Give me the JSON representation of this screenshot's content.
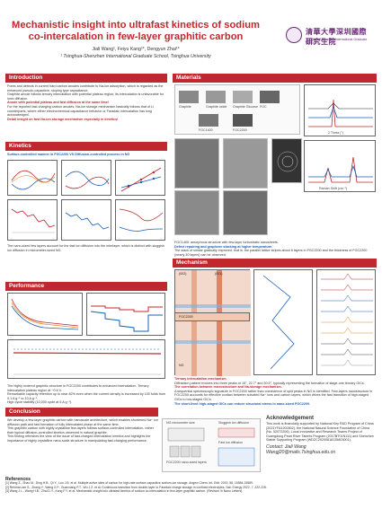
{
  "header": {
    "title": "Mechanistic insight into ultrafast kinetics of sodium co-intercalation in few-layer graphitic carbon",
    "authors": "Jiali Wang¹, Feiyu Kang¹*, Dengyun Zhai¹*",
    "affiliation": "¹ Tsinghua-Shenzhen International Graduate School, Tsinghua University",
    "logo_cn": "清華大學深圳國際研究生院",
    "logo_en": "Tsinghua Shenzhen International Graduate School"
  },
  "sections": {
    "introduction": "Introduction",
    "kinetics": "Kinetics",
    "performance": "Performance",
    "conclusion": "Conclusion",
    "materials": "Materials",
    "mechanism": "Mechanism"
  },
  "introduction": {
    "bullets": [
      "Pores and defects in current hard carbon anodes contribute to Na-ion adsorption, which is regarded as the enhanced pseudo-capacitive, sloping type capacitance.",
      "Graphite anode follows ternary intercalation with potential plateau region; its intercalation is unfavorable for ionic diffusion.",
      "For the reported fast-charging carbon anodes, Na-ion storage mechanism basically follows that of Li counterparts, where either electrochemical capacitance behavior or Faradaic intercalation has long acknowledged."
    ],
    "highlight_1": "Anode with potential plateau and fast diffusion at the same time!",
    "highlight_2": "Detail insight on fast Na-ion storage mechanism especially in kinetics!"
  },
  "kinetics": {
    "lead": "Surface-controlled manner in FGC2200 VS Diffusion-controlled process in NG",
    "caption": "The nano-sized few layers account for the fast ion diffusion into the interlayer, which is distinct with sluggish ion diffusion in micrometer-sized NG."
  },
  "performance": {
    "text_1": "The highly ordered graphitic structure in FGC2200 contributes to enhanced intercalation. Ternary intercalation plateau region at ~0.6 V.",
    "text_2": "Remarkable capacity retention up to near 82% even when the current density is increased by 100 folds from 0.1 A g⁻¹ to 10 A g⁻¹.",
    "text_3": "High cycle stability (10,000 cycle at 5 A g⁻¹)."
  },
  "conclusion": {
    "bullets": [
      "We develop a few-layer graphitic carbon with nanoscale architecture, which enables shortened Na⁺ ion diffusion path and fast formation of fully intercalated phase at the same time.",
      "This graphitic carbon with highly crystalline few-layers follows surface-controlled intercalation, rather than typical diffusion-controlled kinetics observed in natural graphite.",
      "This finding refreshes the view of the issue of fast-charged intercalation kinetics and highlights the importance of highly crystalline nano-scale structure in manipulating fast-charging performance."
    ],
    "diagram_labels": [
      "NG micrometer size",
      "FGC2200 nano-sized layers",
      "Sluggish ion diffusion",
      "Fast ion diffusion",
      "Fast ion diffusion (Short travel from stagnant GICs)"
    ]
  },
  "acknowledgement": {
    "title": "Acknowledgement",
    "text": "This work is financially supported by National Key R&D Program of China (2021YFA1202802), the National Natural Science Foundation of China (No. 52072206), Local Innovative and Research Teams Project of Guangdong Pearl River Talents Program (2017BT01N111) and Shenzhen Stable Supporting Program (WDZC20200818135803001).",
    "contact_title": "Contact: Jiali Wang",
    "contact_email": "Wangj20@mails.Tsinghua.edu.cn"
  },
  "materials": {
    "labels": [
      "Graphite",
      "Graphite oxide",
      "Graphite Glucose",
      "FGC",
      "FGC1400",
      "FGC2200"
    ],
    "caption_1": "FGC1400: amorphous structure with few-layer turbostratic nanosheets.",
    "caption_2": "Defect repairing and graphene stacking at higher temperature.",
    "caption_3": "The stack of similar gradually improved, that is, the parallel lattice stripes about 6 layers in FGC2200 and the thickness of FGC2200 (nearly 30 layers) can be observed.",
    "xrd_xlabel": "2 Theta (°)",
    "raman_xlabel": "Raman Shift (cm⁻¹)"
  },
  "mechanism": {
    "cap_1": "Ternary intercalation mechanism.",
    "cap_2": "Diffraction pattern evolves into three peaks of 15°, 22.7° and 30.5°, typically representing the formation of stage-one ternary GICs.",
    "cap_3": "The correlation between microstructure and Na-storage mechanism.",
    "cap_4": "A sequential spectroscopic signature in FGC2200 rather than coexistence of split peaks in NG is identified. Few-layers nanostructure in FGC2200 accounts for effective contact between solvated Na⁺ ions and carbon layers, which drives the fast transition of high-staged GICs to low-staged GICs.",
    "cap_5": "The short-lived high-staged GICs can reduce structural stress in nano-sized FGC2200.",
    "stages": [
      "(002)",
      "(001)",
      "(002)",
      "(001)",
      "(002)",
      "(001)",
      "(002)"
    ],
    "samples": [
      "NG",
      "FGC2200"
    ]
  },
  "references": {
    "title": "References",
    "items": [
      "[1] Wang Z., Shao M., Ding H.B., Qi Y., Luo J.B. et al. Multiple active sites of carbon for high-rate surface-capacitive sodium-ion storage. Angew Chem. Int. Edit. 2019, 58, 15584-15589.",
      "[2] Rehman am S., Zhang Y., Wang X.P., Guanxiang P.T., Wu J.Z. et al. Continuous transition from double-layer to Faradaic charge storage in confined electrolytes. Nat. Energy 2022, 7, 222-228.",
      "[3] Wang J.L., Wang H.B., Zhai D.Y., Kang F.Y. et al. Mechanistic insight into ultrafast kinetics of sodium co-intercalation in few-layer graphitic carbon. (Revision in Nano Letters)."
    ]
  },
  "colors": {
    "accent": "#c0282d",
    "blue": "#1d5fb8"
  }
}
